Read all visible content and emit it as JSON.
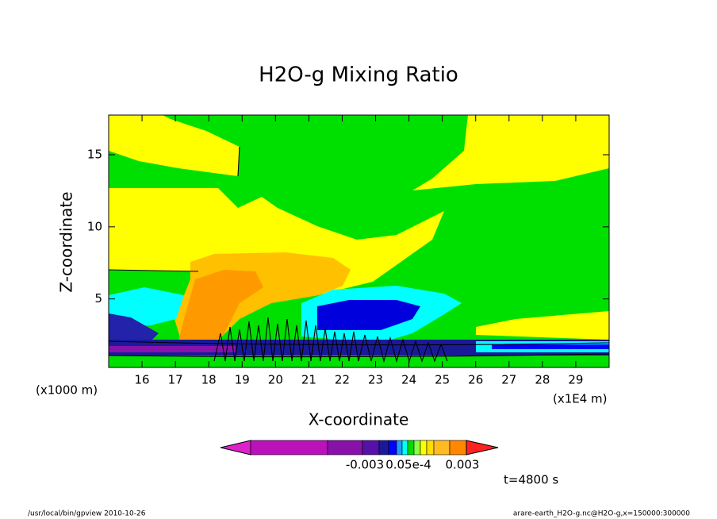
{
  "chart_data": {
    "type": "contour",
    "title": "H2O-g Mixing Ratio",
    "x_label": "X-coordinate",
    "y_label": "Z-coordinate",
    "x_unit": "(x1000 m)",
    "x_unit2": "(x1E4 m)",
    "time_label": "t=4800 s",
    "footer_left": "/usr/local/bin/gpview  2010-10-26",
    "footer_right": "arare-earth_H2O-g.nc@H2O-g,x=150000:300000",
    "xlim": [
      15,
      30
    ],
    "xticks": [
      16,
      17,
      18,
      19,
      20,
      21,
      22,
      23,
      24,
      25,
      26,
      27,
      28,
      29
    ],
    "ylim": [
      0.25,
      17.75
    ],
    "yticks": [
      5,
      10,
      15
    ],
    "colorbar": {
      "colors": [
        "#dd22cc",
        "#bb11bb",
        "#8811aa",
        "#5511aa",
        "#1a1a99",
        "#0000ff",
        "#2299ff",
        "#00ffff",
        "#00dd00",
        "#88ff44",
        "#ffff00",
        "#ffdd00",
        "#ffbb22",
        "#ff8800",
        "#ff2222"
      ],
      "labels": [
        "-0.003",
        "0.05e-4",
        "0.003"
      ]
    }
  }
}
